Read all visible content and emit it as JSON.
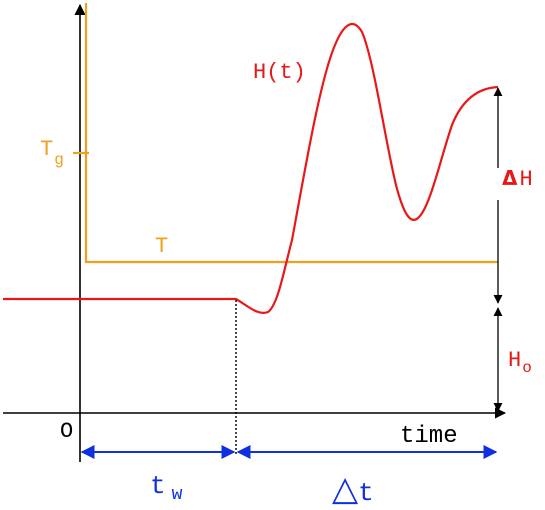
{
  "colors": {
    "axis": "#000000",
    "temperature": "#f0a020",
    "enthalpy": "#e81818",
    "interval": "#1030e0"
  },
  "labels": {
    "origin": "O",
    "x_axis": "time",
    "tg_main": "T",
    "tg_sub": "g",
    "temperature": "T",
    "enthalpy_curve": "H(t)",
    "delta_h_symbol": "Δ",
    "delta_h_letter": "H",
    "h0_main": "H",
    "h0_sub": "o",
    "tw_main": "t",
    "tw_sub": "w",
    "delta_t_symbol": "△",
    "delta_t_letter": "t"
  }
}
